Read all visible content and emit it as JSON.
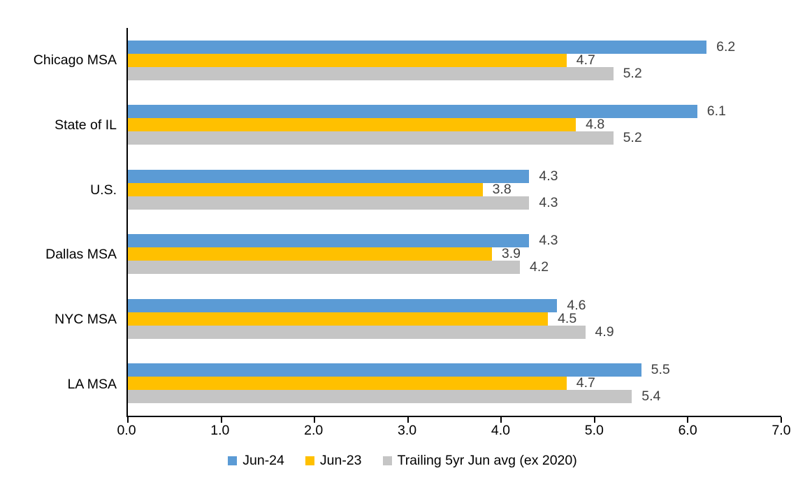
{
  "chart_data": {
    "type": "bar",
    "orientation": "horizontal",
    "title": "",
    "xlabel": "",
    "ylabel": "",
    "xlim": [
      0,
      7
    ],
    "x_tick_labels": [
      "0.0",
      "1.0",
      "2.0",
      "3.0",
      "4.0",
      "5.0",
      "6.0",
      "7.0"
    ],
    "grid": false,
    "legend_position": "bottom",
    "data_labels": true,
    "categories": [
      "Chicago MSA",
      "State of IL",
      "U.S.",
      "Dallas MSA",
      "NYC MSA",
      "LA MSA"
    ],
    "series": [
      {
        "name": "Jun-24",
        "color": "#5B9BD5",
        "values": [
          6.2,
          6.1,
          4.3,
          4.3,
          4.6,
          5.5
        ],
        "labels": [
          "6.2",
          "6.1",
          "4.3",
          "4.3",
          "4.6",
          "5.5"
        ]
      },
      {
        "name": "Jun-23",
        "color": "#FFC000",
        "values": [
          4.7,
          4.8,
          3.8,
          3.9,
          4.5,
          4.7
        ],
        "labels": [
          "4.7",
          "4.8",
          "3.8",
          "3.9",
          "4.5",
          "4.7"
        ]
      },
      {
        "name": "Trailing 5yr Jun avg (ex 2020)",
        "color": "#C5C5C5",
        "values": [
          5.2,
          5.2,
          4.3,
          4.2,
          4.9,
          5.4
        ],
        "labels": [
          "5.2",
          "5.2",
          "4.3",
          "4.2",
          "4.9",
          "5.4"
        ]
      }
    ],
    "colors": {
      "axis_line": "#000000",
      "tick_label": "#000000",
      "category_label": "#000000",
      "data_label": "#404040",
      "background": "#FFFFFF"
    }
  }
}
